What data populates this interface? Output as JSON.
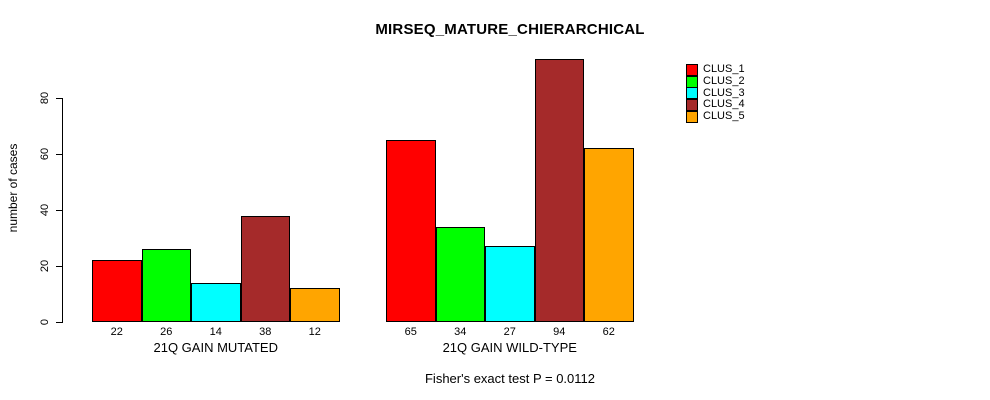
{
  "chart_data": {
    "type": "bar",
    "title": "MIRSEQ_MATURE_CHIERARCHICAL",
    "ylabel": "number of cases",
    "ylim": [
      0,
      97
    ],
    "yticks": [
      0,
      20,
      40,
      60,
      80
    ],
    "grid": false,
    "legend_position": "right",
    "clusters": [
      {
        "name": "CLUS_1",
        "color": "#FF0000"
      },
      {
        "name": "CLUS_2",
        "color": "#00FF00"
      },
      {
        "name": "CLUS_3",
        "color": "#00FFFF"
      },
      {
        "name": "CLUS_4",
        "color": "#A52A2A"
      },
      {
        "name": "CLUS_5",
        "color": "#FFA500"
      }
    ],
    "groups": [
      {
        "label": "21Q GAIN MUTATED",
        "values": [
          22,
          26,
          14,
          38,
          12
        ]
      },
      {
        "label": "21Q GAIN WILD-TYPE",
        "values": [
          65,
          34,
          27,
          94,
          62
        ]
      }
    ],
    "footer": "Fisher's exact test P = 0.0112"
  }
}
